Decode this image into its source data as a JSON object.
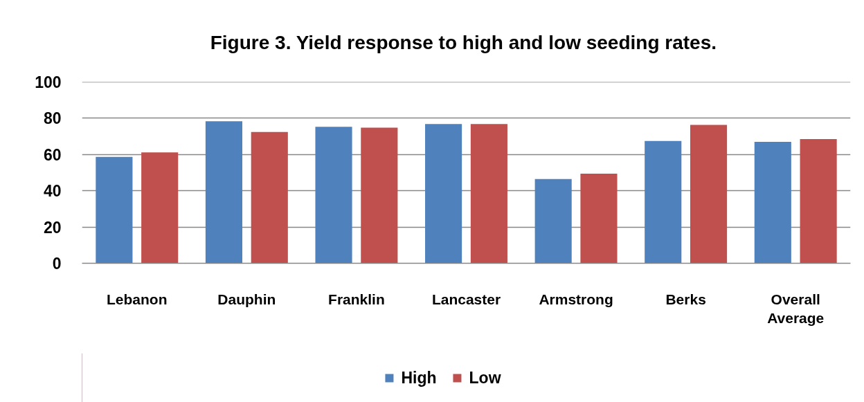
{
  "chart_data": {
    "type": "bar",
    "title": "Figure 3.  Yield response to high and low seeding rates.",
    "categories": [
      "Lebanon",
      "Dauphin",
      "Franklin",
      "Lancaster",
      "Armstrong",
      "Berks",
      "Overall Average"
    ],
    "series": [
      {
        "name": "High",
        "color": "#4f81bd",
        "values": [
          58.7,
          78.3,
          75.3,
          76.8,
          46.5,
          67.5,
          67.0
        ]
      },
      {
        "name": "Low",
        "color": "#c0504d",
        "values": [
          61.2,
          72.4,
          74.8,
          76.8,
          49.4,
          76.3,
          68.5
        ]
      }
    ],
    "ylim": [
      0,
      100
    ],
    "yticks": [
      0,
      20,
      40,
      60,
      80,
      100
    ],
    "grid": "y",
    "legend": "bottom"
  }
}
